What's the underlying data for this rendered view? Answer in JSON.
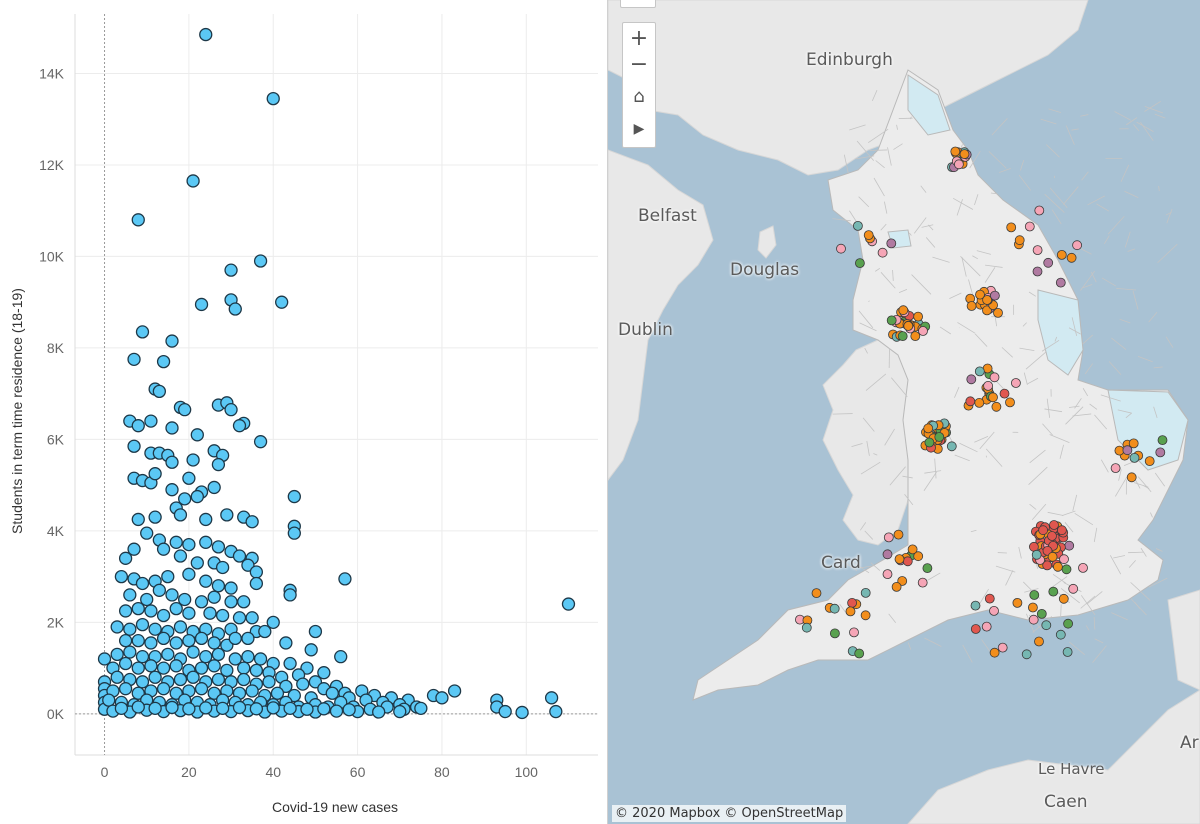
{
  "chart_data": {
    "type": "scatter",
    "title": "",
    "xlabel": "Covid-19 new cases",
    "ylabel": "Students in term time residence (18-19)",
    "xlim": [
      -7,
      117
    ],
    "ylim": [
      -900,
      15300
    ],
    "x_ticks": [
      0,
      20,
      40,
      60,
      80,
      100
    ],
    "y_ticks": [
      0,
      2000,
      4000,
      6000,
      8000,
      10000,
      12000,
      14000
    ],
    "y_tick_labels": [
      "0K",
      "2K",
      "4K",
      "6K",
      "8K",
      "10K",
      "12K",
      "14K"
    ],
    "grid": true,
    "marker_color": "#5bc8f5",
    "marker_edge": "#1d3848",
    "points": [
      [
        24,
        14850
      ],
      [
        40,
        13450
      ],
      [
        21,
        11650
      ],
      [
        8,
        10800
      ],
      [
        30,
        9700
      ],
      [
        37,
        9900
      ],
      [
        23,
        8950
      ],
      [
        30,
        9050
      ],
      [
        31,
        8850
      ],
      [
        42,
        9000
      ],
      [
        9,
        8350
      ],
      [
        16,
        8150
      ],
      [
        7,
        7750
      ],
      [
        14,
        7700
      ],
      [
        12,
        7100
      ],
      [
        13,
        7050
      ],
      [
        6,
        6400
      ],
      [
        11,
        6400
      ],
      [
        8,
        6300
      ],
      [
        16,
        6250
      ],
      [
        27,
        6750
      ],
      [
        29,
        6800
      ],
      [
        18,
        6700
      ],
      [
        19,
        6650
      ],
      [
        22,
        6100
      ],
      [
        30,
        6650
      ],
      [
        33,
        6350
      ],
      [
        32,
        6300
      ],
      [
        37,
        5950
      ],
      [
        7,
        5850
      ],
      [
        11,
        5700
      ],
      [
        13,
        5700
      ],
      [
        15,
        5650
      ],
      [
        16,
        5500
      ],
      [
        21,
        5550
      ],
      [
        26,
        5750
      ],
      [
        28,
        5650
      ],
      [
        27,
        5450
      ],
      [
        7,
        5150
      ],
      [
        9,
        5100
      ],
      [
        11,
        5050
      ],
      [
        12,
        5250
      ],
      [
        20,
        5150
      ],
      [
        16,
        4900
      ],
      [
        26,
        4950
      ],
      [
        23,
        4850
      ],
      [
        22,
        4750
      ],
      [
        19,
        4700
      ],
      [
        45,
        4750
      ],
      [
        17,
        4500
      ],
      [
        8,
        4250
      ],
      [
        12,
        4300
      ],
      [
        18,
        4350
      ],
      [
        24,
        4250
      ],
      [
        29,
        4350
      ],
      [
        33,
        4300
      ],
      [
        35,
        4200
      ],
      [
        45,
        4100
      ],
      [
        45,
        3950
      ],
      [
        10,
        3950
      ],
      [
        13,
        3800
      ],
      [
        17,
        3750
      ],
      [
        20,
        3700
      ],
      [
        24,
        3750
      ],
      [
        27,
        3650
      ],
      [
        30,
        3550
      ],
      [
        32,
        3450
      ],
      [
        35,
        3400
      ],
      [
        5,
        3400
      ],
      [
        7,
        3600
      ],
      [
        14,
        3600
      ],
      [
        18,
        3450
      ],
      [
        22,
        3300
      ],
      [
        26,
        3300
      ],
      [
        28,
        3200
      ],
      [
        34,
        3250
      ],
      [
        36,
        3100
      ],
      [
        57,
        2950
      ],
      [
        4,
        3000
      ],
      [
        7,
        2950
      ],
      [
        9,
        2850
      ],
      [
        12,
        2900
      ],
      [
        15,
        3000
      ],
      [
        20,
        3050
      ],
      [
        24,
        2900
      ],
      [
        27,
        2800
      ],
      [
        30,
        2750
      ],
      [
        36,
        2850
      ],
      [
        44,
        2700
      ],
      [
        44,
        2600
      ],
      [
        6,
        2600
      ],
      [
        10,
        2500
      ],
      [
        13,
        2700
      ],
      [
        16,
        2600
      ],
      [
        19,
        2500
      ],
      [
        23,
        2450
      ],
      [
        26,
        2550
      ],
      [
        30,
        2450
      ],
      [
        33,
        2450
      ],
      [
        110,
        2400
      ],
      [
        5,
        2250
      ],
      [
        8,
        2300
      ],
      [
        11,
        2250
      ],
      [
        14,
        2150
      ],
      [
        17,
        2300
      ],
      [
        20,
        2200
      ],
      [
        25,
        2200
      ],
      [
        28,
        2150
      ],
      [
        32,
        2100
      ],
      [
        35,
        2100
      ],
      [
        40,
        2000
      ],
      [
        3,
        1900
      ],
      [
        6,
        1850
      ],
      [
        9,
        1950
      ],
      [
        12,
        1850
      ],
      [
        15,
        1800
      ],
      [
        18,
        1900
      ],
      [
        21,
        1800
      ],
      [
        24,
        1850
      ],
      [
        27,
        1750
      ],
      [
        30,
        1850
      ],
      [
        36,
        1800
      ],
      [
        38,
        1800
      ],
      [
        50,
        1800
      ],
      [
        5,
        1600
      ],
      [
        8,
        1600
      ],
      [
        11,
        1550
      ],
      [
        14,
        1650
      ],
      [
        17,
        1550
      ],
      [
        20,
        1600
      ],
      [
        23,
        1650
      ],
      [
        26,
        1550
      ],
      [
        29,
        1500
      ],
      [
        31,
        1650
      ],
      [
        34,
        1650
      ],
      [
        43,
        1550
      ],
      [
        49,
        1400
      ],
      [
        56,
        1250
      ],
      [
        0,
        1200
      ],
      [
        3,
        1300
      ],
      [
        6,
        1350
      ],
      [
        9,
        1250
      ],
      [
        12,
        1250
      ],
      [
        15,
        1300
      ],
      [
        18,
        1200
      ],
      [
        21,
        1350
      ],
      [
        24,
        1250
      ],
      [
        27,
        1300
      ],
      [
        31,
        1200
      ],
      [
        34,
        1250
      ],
      [
        37,
        1200
      ],
      [
        40,
        1100
      ],
      [
        44,
        1100
      ],
      [
        48,
        1000
      ],
      [
        52,
        900
      ],
      [
        2,
        1000
      ],
      [
        5,
        1100
      ],
      [
        8,
        1000
      ],
      [
        11,
        1050
      ],
      [
        14,
        1000
      ],
      [
        17,
        1050
      ],
      [
        20,
        950
      ],
      [
        23,
        1000
      ],
      [
        26,
        1050
      ],
      [
        29,
        950
      ],
      [
        33,
        1000
      ],
      [
        36,
        950
      ],
      [
        39,
        900
      ],
      [
        42,
        800
      ],
      [
        46,
        850
      ],
      [
        50,
        700
      ],
      [
        55,
        600
      ],
      [
        0,
        700
      ],
      [
        0,
        550
      ],
      [
        0,
        400
      ],
      [
        0,
        250
      ],
      [
        0,
        100
      ],
      [
        3,
        800
      ],
      [
        6,
        750
      ],
      [
        9,
        700
      ],
      [
        12,
        800
      ],
      [
        15,
        700
      ],
      [
        18,
        750
      ],
      [
        21,
        800
      ],
      [
        24,
        700
      ],
      [
        27,
        750
      ],
      [
        30,
        700
      ],
      [
        33,
        750
      ],
      [
        36,
        650
      ],
      [
        39,
        700
      ],
      [
        43,
        600
      ],
      [
        47,
        650
      ],
      [
        52,
        550
      ],
      [
        57,
        450
      ],
      [
        61,
        500
      ],
      [
        64,
        400
      ],
      [
        68,
        350
      ],
      [
        72,
        300
      ],
      [
        2,
        500
      ],
      [
        5,
        550
      ],
      [
        8,
        450
      ],
      [
        11,
        500
      ],
      [
        14,
        550
      ],
      [
        17,
        450
      ],
      [
        20,
        500
      ],
      [
        23,
        550
      ],
      [
        26,
        450
      ],
      [
        29,
        500
      ],
      [
        32,
        450
      ],
      [
        35,
        500
      ],
      [
        38,
        400
      ],
      [
        41,
        450
      ],
      [
        45,
        400
      ],
      [
        49,
        350
      ],
      [
        54,
        450
      ],
      [
        58,
        350
      ],
      [
        62,
        300
      ],
      [
        66,
        250
      ],
      [
        70,
        200
      ],
      [
        74,
        150
      ],
      [
        78,
        400
      ],
      [
        80,
        350
      ],
      [
        83,
        500
      ],
      [
        93,
        300
      ],
      [
        93,
        150
      ],
      [
        95,
        50
      ],
      [
        99,
        30
      ],
      [
        106,
        350
      ],
      [
        107,
        50
      ],
      [
        1,
        300
      ],
      [
        4,
        250
      ],
      [
        7,
        200
      ],
      [
        10,
        300
      ],
      [
        13,
        250
      ],
      [
        16,
        200
      ],
      [
        19,
        300
      ],
      [
        22,
        250
      ],
      [
        25,
        200
      ],
      [
        28,
        300
      ],
      [
        31,
        250
      ],
      [
        34,
        200
      ],
      [
        37,
        250
      ],
      [
        40,
        200
      ],
      [
        43,
        250
      ],
      [
        46,
        150
      ],
      [
        50,
        200
      ],
      [
        53,
        150
      ],
      [
        56,
        250
      ],
      [
        59,
        150
      ],
      [
        63,
        100
      ],
      [
        67,
        150
      ],
      [
        71,
        100
      ],
      [
        75,
        120
      ],
      [
        2,
        60
      ],
      [
        6,
        40
      ],
      [
        10,
        80
      ],
      [
        14,
        50
      ],
      [
        18,
        70
      ],
      [
        22,
        40
      ],
      [
        26,
        60
      ],
      [
        30,
        50
      ],
      [
        34,
        70
      ],
      [
        38,
        40
      ],
      [
        42,
        60
      ],
      [
        46,
        50
      ],
      [
        50,
        40
      ],
      [
        55,
        60
      ],
      [
        60,
        50
      ],
      [
        65,
        40
      ],
      [
        70,
        50
      ],
      [
        4,
        120
      ],
      [
        8,
        150
      ],
      [
        12,
        120
      ],
      [
        16,
        140
      ],
      [
        20,
        110
      ],
      [
        24,
        130
      ],
      [
        28,
        120
      ],
      [
        32,
        140
      ],
      [
        36,
        110
      ],
      [
        40,
        130
      ],
      [
        44,
        120
      ],
      [
        48,
        100
      ],
      [
        52,
        110
      ],
      [
        58,
        90
      ]
    ]
  },
  "map": {
    "labels": {
      "edinburgh": "Edinburgh",
      "belfast": "Belfast",
      "douglas": "Douglas",
      "dublin": "Dublin",
      "cardiff": "Card",
      "le_havre": "Le Havre",
      "caen": "Caen",
      "east_edge": "Ar"
    },
    "controls": {
      "zoom_in": "+",
      "zoom_out": "−",
      "home": "⌂",
      "expand": "▶"
    },
    "attribution": "© 2020 Mapbox  © OpenStreetMap",
    "point_colors": {
      "orange": "#f28e1c",
      "red": "#e0574f",
      "teal": "#76b7b2",
      "purple": "#b07aa1",
      "pink": "#f5a5b6",
      "green": "#59a14f"
    },
    "land_color": "#e8e8e8",
    "water_color": "#a9c2d4",
    "highlight_region_color": "#d2eaf2"
  }
}
